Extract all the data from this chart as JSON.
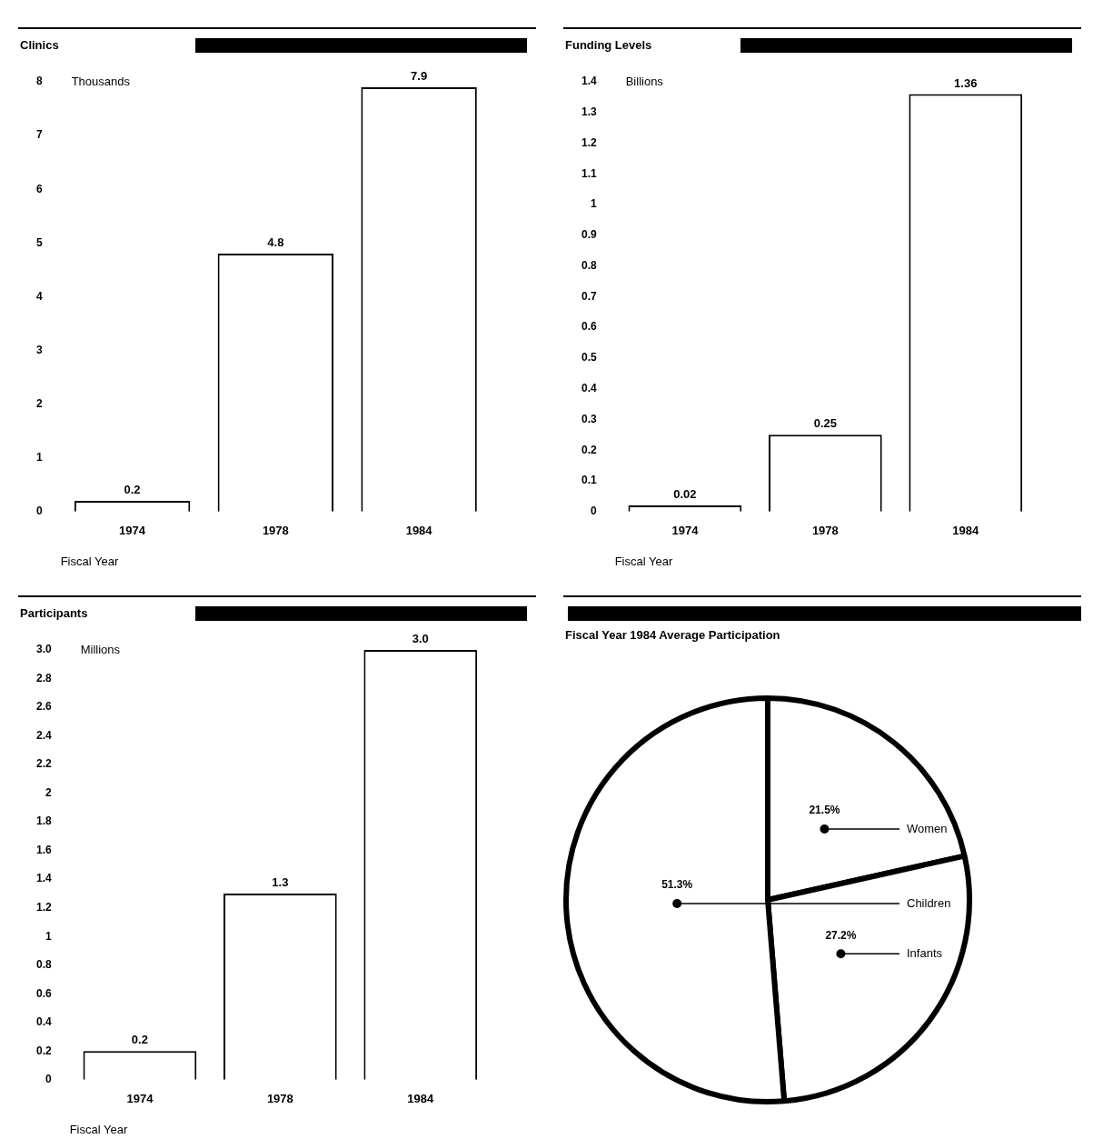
{
  "chart_data": [
    {
      "type": "bar",
      "title": "Clinics",
      "ylabel": "Thousands",
      "xlabel": "Fiscal Year",
      "categories": [
        "1974",
        "1978",
        "1984"
      ],
      "values": [
        0.2,
        4.8,
        7.9
      ],
      "color": "#ffffff",
      "ylim": [
        0,
        8
      ],
      "yticks": [
        0,
        1,
        2,
        3,
        4,
        5,
        6,
        7,
        8
      ],
      "data_labels": true,
      "legend": false,
      "grid": false
    },
    {
      "type": "bar",
      "title": "Funding Levels",
      "ylabel": "Billions",
      "xlabel": "Fiscal Year",
      "categories": [
        "1974",
        "1978",
        "1984"
      ],
      "values": [
        0.02,
        0.25,
        1.36
      ],
      "color": "#ffffff",
      "ylim": [
        0,
        1.4
      ],
      "yticks": [
        0,
        0.1,
        0.2,
        0.3,
        0.4,
        0.5,
        0.6,
        0.7,
        0.8,
        0.9,
        1,
        1.1,
        1.2,
        1.3,
        1.4
      ],
      "data_labels": true,
      "legend": false,
      "grid": false
    },
    {
      "type": "bar",
      "title": "Participants",
      "ylabel": "Millions",
      "xlabel": "Fiscal Year",
      "categories": [
        "1974",
        "1978",
        "1984"
      ],
      "values": [
        0.2,
        1.3,
        3.0
      ],
      "value_labels": [
        "0.2",
        "1.3",
        "3.0"
      ],
      "color": "#ffffff",
      "ylim": [
        0,
        3
      ],
      "yticks": [
        0,
        {
          "value": 0.2,
          "label": "0.2"
        },
        {
          "value": 0.4,
          "label": "0.4"
        },
        {
          "value": 0.6,
          "label": "0.6"
        },
        {
          "value": 0.8,
          "label": "0.8"
        },
        1,
        {
          "value": 1.2,
          "label": "1.2"
        },
        {
          "value": 1.4,
          "label": "1.4"
        },
        {
          "value": 1.6,
          "label": "1.6"
        },
        {
          "value": 1.8,
          "label": "1.8"
        },
        2,
        {
          "value": 2.2,
          "label": "2.2"
        },
        {
          "value": 2.4,
          "label": "2.4"
        },
        {
          "value": 2.6,
          "label": "2.6"
        },
        {
          "value": 2.8,
          "label": "2.8"
        },
        {
          "value": 3,
          "label": "3.0"
        }
      ],
      "legend": false,
      "grid": false
    },
    {
      "type": "pie",
      "title": "Fiscal Year 1984 Average Participation",
      "categories": [
        "Women",
        "Infants",
        "Children"
      ],
      "values": [
        21.5,
        27.2,
        51.3
      ],
      "value_labels": [
        "21.5%",
        "27.2%",
        "51.3%"
      ],
      "colors": [
        "#ffffff",
        "#ffffff",
        "#ffffff"
      ],
      "legend": false
    }
  ]
}
